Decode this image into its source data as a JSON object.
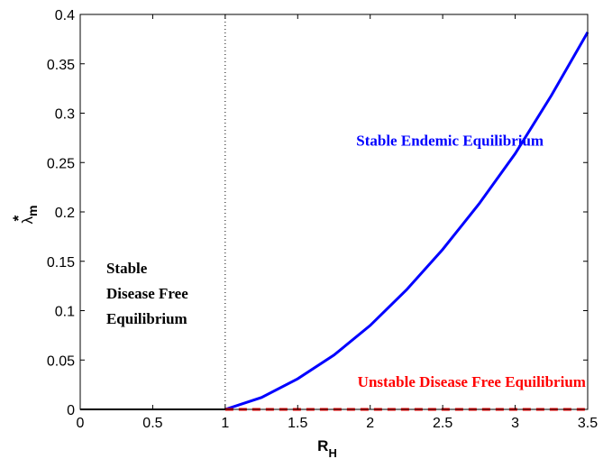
{
  "chart_data": {
    "type": "line",
    "title": "",
    "xlabel_main": "R",
    "xlabel_sub": "H",
    "ylabel_main": "λ",
    "ylabel_sup": "*",
    "ylabel_sub": "m",
    "xlim": [
      0,
      3.5
    ],
    "ylim": [
      0,
      0.4
    ],
    "x_ticks": [
      0,
      0.5,
      1,
      1.5,
      2,
      2.5,
      3,
      3.5
    ],
    "x_tick_labels": [
      "0",
      "0.5",
      "1",
      "1.5",
      "2",
      "2.5",
      "3",
      "3.5"
    ],
    "y_ticks": [
      0,
      0.05,
      0.1,
      0.15,
      0.2,
      0.25,
      0.3,
      0.35,
      0.4
    ],
    "y_tick_labels": [
      "0",
      "0.05",
      "0.1",
      "0.15",
      "0.2",
      "0.25",
      "0.3",
      "0.35",
      "0.4"
    ],
    "grid": false,
    "threshold_x": 1,
    "series": [
      {
        "color": "#000000",
        "style": "solid",
        "x": [
          0,
          1
        ],
        "y": [
          0,
          0
        ]
      },
      {
        "color": "#0000ff",
        "style": "solid",
        "x": [
          1,
          1.25,
          1.5,
          1.75,
          2,
          2.25,
          2.5,
          2.75,
          3,
          3.25,
          3.5
        ],
        "y": [
          0,
          0.012,
          0.031,
          0.055,
          0.085,
          0.121,
          0.162,
          0.208,
          0.259,
          0.318,
          0.382
        ]
      },
      {
        "color": "#ff0000",
        "style": "dashed",
        "x": [
          1,
          3.5
        ],
        "y": [
          0,
          0
        ]
      }
    ],
    "annotations": [
      {
        "lines": [
          "Stable Endemic Equilibrium"
        ],
        "x": 2.55,
        "y": 0.267,
        "color": "#0000ff",
        "anchor": "middle"
      },
      {
        "lines": [
          "Stable",
          "Disease Free",
          "Equilibrium"
        ],
        "x": 0.18,
        "y": 0.138,
        "color": "#000000",
        "anchor": "start"
      },
      {
        "lines": [
          "Unstable Disease Free Equilibrium"
        ],
        "x": 2.7,
        "y": 0.023,
        "color": "#ff0000",
        "anchor": "middle"
      }
    ]
  }
}
